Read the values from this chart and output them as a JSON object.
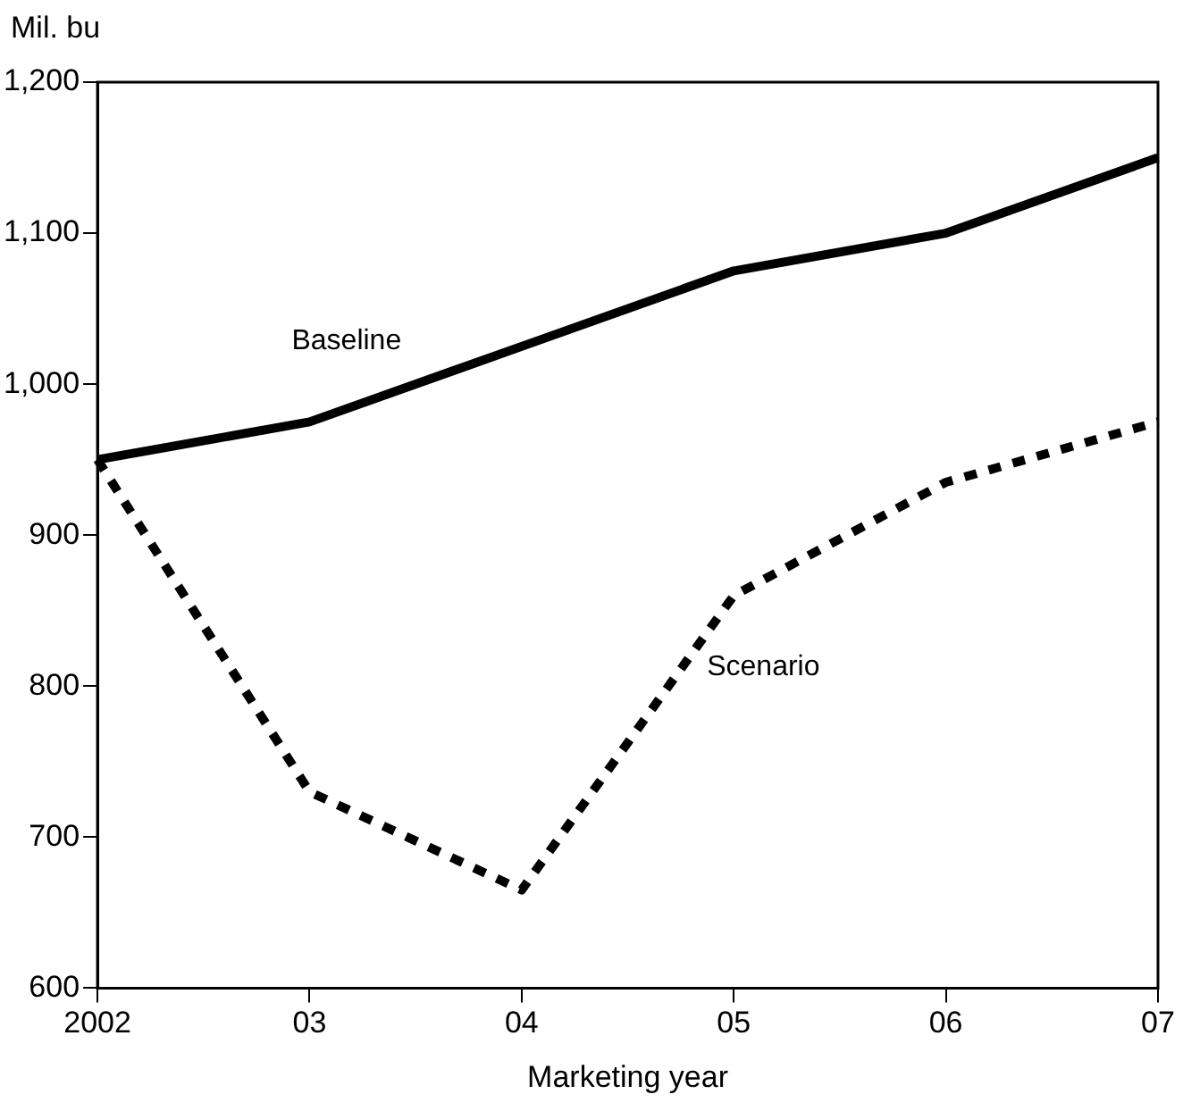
{
  "chart_data": {
    "type": "line",
    "ylabel": "Mil. bu",
    "xlabel": "Marketing year",
    "categories": [
      "2002",
      "03",
      "04",
      "05",
      "06",
      "07"
    ],
    "series": [
      {
        "name": "Baseline",
        "color": "#000000",
        "line_style": "solid",
        "values": [
          950,
          975,
          1025,
          1075,
          1100,
          1150
        ]
      },
      {
        "name": "Scenario",
        "color": "#000000",
        "line_style": "dotted",
        "values": [
          950,
          730,
          665,
          860,
          935,
          975
        ]
      }
    ],
    "ylim": [
      600,
      1200
    ],
    "yticks": [
      600,
      700,
      800,
      900,
      {
        "value": 1000,
        "label": "1,000"
      },
      {
        "value": 1100,
        "label": "1,100"
      },
      {
        "value": 1200,
        "label": "1,200"
      }
    ],
    "grid": false,
    "legend": false,
    "marker": "none"
  }
}
